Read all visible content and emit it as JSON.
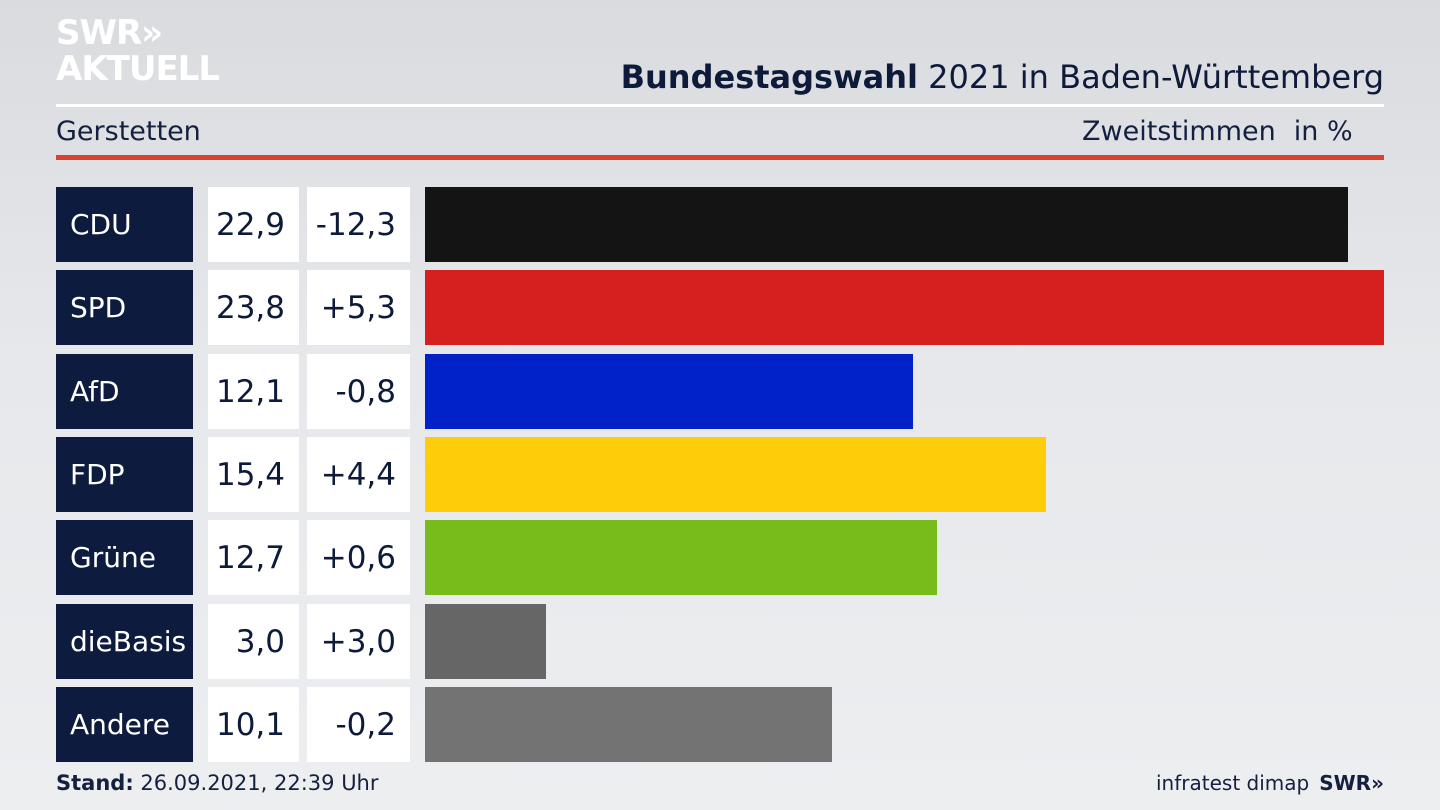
{
  "brand": {
    "logo_line1": "SWR»",
    "logo_line2": "AKTUELL"
  },
  "header": {
    "title_bold": "Bundestagswahl",
    "title_rest": "2021 in Baden-Württemberg",
    "location": "Gerstetten",
    "metric": "Zweitstimmen",
    "unit": "in %"
  },
  "chart_data": {
    "type": "bar",
    "orientation": "horizontal",
    "title": "Bundestagswahl 2021 in Baden-Württemberg",
    "subtitle": "Gerstetten",
    "xlabel": "Zweitstimmen in %",
    "categories": [
      "CDU",
      "SPD",
      "AfD",
      "FDP",
      "Grüne",
      "dieBasis",
      "Andere"
    ],
    "values": [
      22.9,
      23.8,
      12.1,
      15.4,
      12.7,
      3.0,
      10.1
    ],
    "labels": [
      "22,9",
      "23,8",
      "12,1",
      "15,4",
      "12,7",
      "3,0",
      "10,1"
    ],
    "changes": [
      "-12,3",
      "+5,3",
      "-0,8",
      "+4,4",
      "+0,6",
      "+3,0",
      "-0,2"
    ],
    "colors": [
      "#141414",
      "#d62020",
      "#0022c8",
      "#fecd0a",
      "#78bc1b",
      "#666666",
      "#737373"
    ],
    "xlim": [
      0,
      23.8
    ],
    "grid": false
  },
  "footer": {
    "stand_label": "Stand:",
    "stand_value": "26.09.2021, 22:39 Uhr",
    "source": "infratest dimap",
    "source_logo": "SWR»"
  }
}
